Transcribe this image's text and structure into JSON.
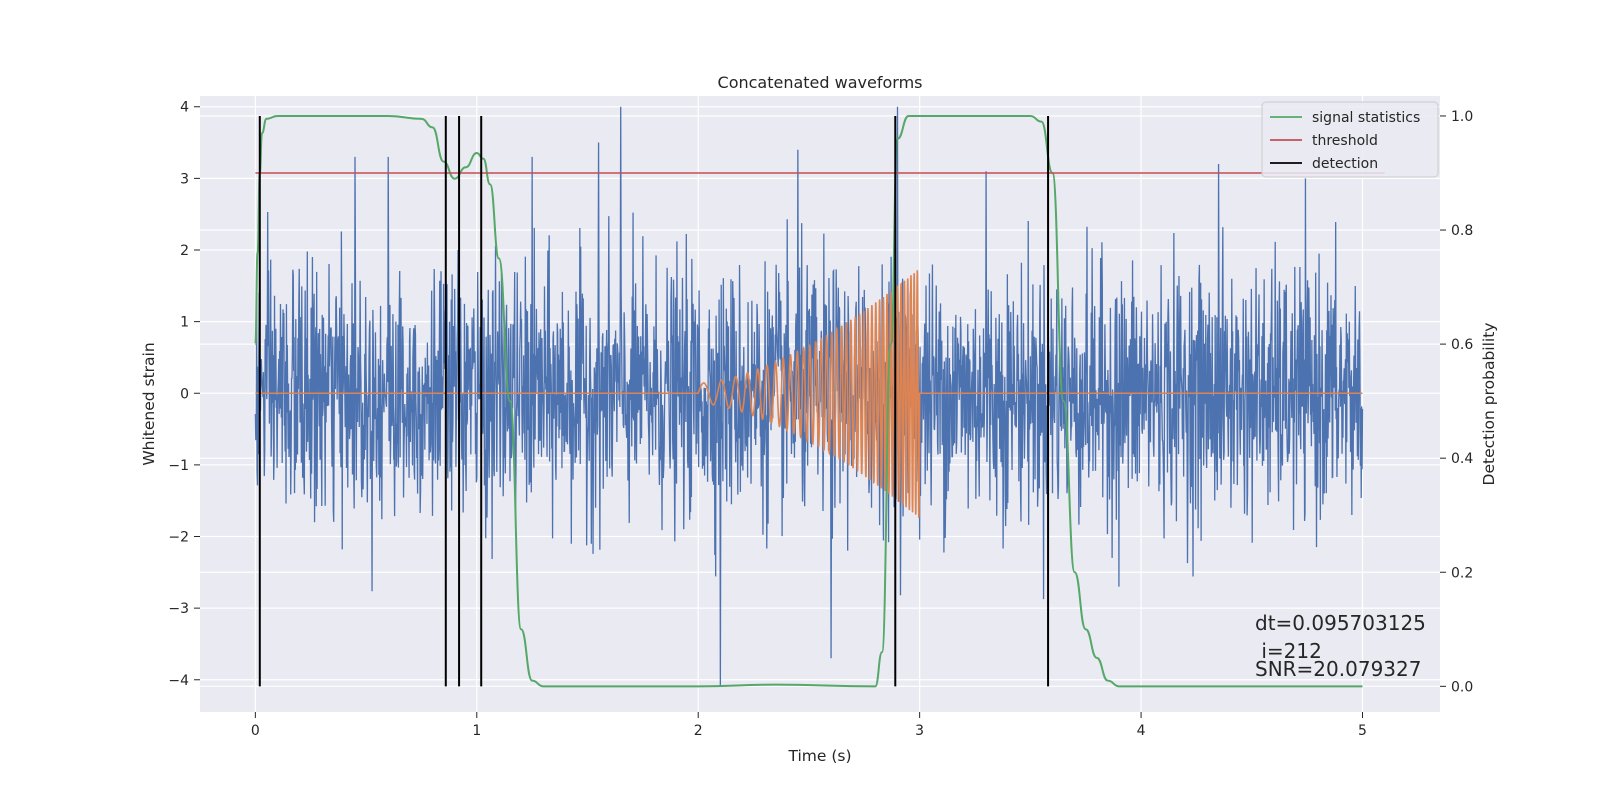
{
  "chart_data": {
    "type": "line",
    "title": "Concatenated waveforms",
    "xlabel": "Time (s)",
    "ylabel": "Whitened strain",
    "y2label": "Detection probability",
    "xlim": [
      -0.25,
      5.35
    ],
    "ylim": [
      -4.45,
      4.15
    ],
    "y2lim": [
      -0.045,
      1.035
    ],
    "xticks": [
      0,
      1,
      2,
      3,
      4,
      5
    ],
    "yticks": [
      -4,
      -3,
      -2,
      -1,
      0,
      1,
      2,
      3,
      4
    ],
    "y2ticks": [
      0.0,
      0.2,
      0.4,
      0.6,
      0.8,
      1.0
    ],
    "grid": true,
    "legend_position": "top-right",
    "legend": [
      "signal statistics",
      "threshold",
      "detection"
    ],
    "series": [
      {
        "kind": "noise",
        "axis": "left",
        "color": "#4c72b0",
        "x_range": [
          0,
          5
        ],
        "approx_range": [
          -4.1,
          3.8
        ],
        "peaks": [
          [
            0.45,
            3.3
          ],
          [
            0.6,
            3.3
          ],
          [
            1.25,
            3.3
          ],
          [
            1.55,
            3.5
          ],
          [
            1.65,
            4.0
          ],
          [
            2.1,
            -4.1
          ],
          [
            2.45,
            3.4
          ],
          [
            2.6,
            -3.7
          ],
          [
            2.9,
            4.0
          ],
          [
            3.3,
            3.1
          ],
          [
            3.9,
            -2.7
          ],
          [
            4.35,
            3.2
          ]
        ]
      },
      {
        "kind": "chirp",
        "axis": "left",
        "color": "#dd8452",
        "x_range": [
          0,
          5
        ],
        "chirp_range": [
          2.0,
          3.0
        ],
        "peak_amplitude": 1.75
      },
      {
        "name": "signal statistics",
        "axis": "right",
        "color": "#55a868",
        "points": [
          [
            0,
            0.6
          ],
          [
            0.01,
            0.76
          ],
          [
            0.02,
            0.9
          ],
          [
            0.03,
            0.97
          ],
          [
            0.05,
            0.995
          ],
          [
            0.1,
            1.0
          ],
          [
            0.6,
            1.0
          ],
          [
            0.75,
            0.995
          ],
          [
            0.8,
            0.98
          ],
          [
            0.85,
            0.92
          ],
          [
            0.9,
            0.89
          ],
          [
            0.95,
            0.91
          ],
          [
            1.0,
            0.935
          ],
          [
            1.03,
            0.925
          ],
          [
            1.06,
            0.88
          ],
          [
            1.1,
            0.75
          ],
          [
            1.15,
            0.5
          ],
          [
            1.2,
            0.1
          ],
          [
            1.25,
            0.01
          ],
          [
            1.3,
            0.0
          ],
          [
            2.0,
            0.0
          ],
          [
            2.35,
            0.003
          ],
          [
            2.8,
            0.0
          ],
          [
            2.83,
            0.06
          ],
          [
            2.87,
            0.6
          ],
          [
            2.9,
            0.96
          ],
          [
            2.95,
            1.0
          ],
          [
            3.5,
            1.0
          ],
          [
            3.55,
            0.99
          ],
          [
            3.6,
            0.9
          ],
          [
            3.65,
            0.5
          ],
          [
            3.7,
            0.2
          ],
          [
            3.75,
            0.1
          ],
          [
            3.8,
            0.05
          ],
          [
            3.85,
            0.01
          ],
          [
            3.9,
            0.0
          ],
          [
            5.0,
            0.0
          ]
        ]
      },
      {
        "name": "threshold",
        "axis": "right",
        "color": "#c44e52",
        "x": [
          0,
          5.1
        ],
        "value": 0.9
      },
      {
        "name": "detection",
        "axis": "right",
        "color": "#000000",
        "x": [
          0.02,
          0.86,
          0.92,
          1.02,
          2.89,
          3.58
        ],
        "y_range": [
          0.0,
          1.0
        ]
      }
    ],
    "annotations": [
      {
        "text": "dt=0.095703125",
        "x": 4.5,
        "y": -3.3
      },
      {
        "text": " i=212",
        "x": 4.5,
        "y": -3.65
      },
      {
        "text": "SNR=20.079327",
        "x": 4.5,
        "y": -3.9
      }
    ]
  }
}
